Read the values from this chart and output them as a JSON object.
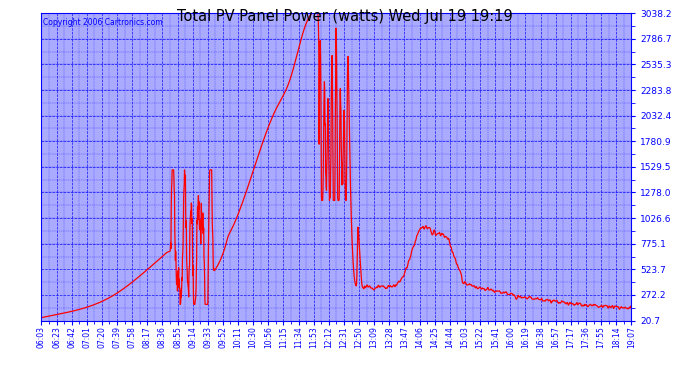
{
  "title": "Total PV Panel Power (watts) Wed Jul 19 19:19",
  "copyright": "Copyright 2006 Cartronics.com",
  "plot_bg_color": "#aaaaff",
  "line_color": "#ff0000",
  "ytick_labels": [
    "20.7",
    "272.2",
    "523.7",
    "775.1",
    "1026.6",
    "1278.0",
    "1529.5",
    "1780.9",
    "2032.4",
    "2283.8",
    "2535.3",
    "2786.7",
    "3038.2"
  ],
  "ytick_values": [
    20.7,
    272.2,
    523.7,
    775.1,
    1026.6,
    1278.0,
    1529.5,
    1780.9,
    2032.4,
    2283.8,
    2535.3,
    2786.7,
    3038.2
  ],
  "ylim": [
    20.7,
    3038.2
  ],
  "x_labels": [
    "06:03",
    "06:23",
    "06:42",
    "07:01",
    "07:20",
    "07:39",
    "07:58",
    "08:17",
    "08:36",
    "08:55",
    "09:14",
    "09:33",
    "09:52",
    "10:11",
    "10:30",
    "10:56",
    "11:15",
    "11:34",
    "11:53",
    "12:12",
    "12:31",
    "12:50",
    "13:09",
    "13:28",
    "13:47",
    "14:06",
    "14:25",
    "14:44",
    "15:03",
    "15:22",
    "15:41",
    "16:00",
    "16:19",
    "16:38",
    "16:57",
    "17:17",
    "17:36",
    "17:55",
    "18:14",
    "19:07"
  ]
}
